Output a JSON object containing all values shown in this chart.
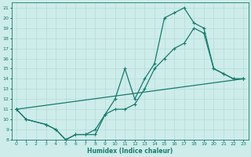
{
  "xlabel": "Humidex (Indice chaleur)",
  "xlim": [
    -0.5,
    23.5
  ],
  "ylim": [
    8,
    21.5
  ],
  "xticks": [
    0,
    1,
    2,
    3,
    4,
    5,
    6,
    7,
    8,
    9,
    10,
    11,
    12,
    13,
    14,
    15,
    16,
    17,
    18,
    19,
    20,
    21,
    22,
    23
  ],
  "yticks": [
    8,
    9,
    10,
    11,
    12,
    13,
    14,
    15,
    16,
    17,
    18,
    19,
    20,
    21
  ],
  "bg_color": "#cdecea",
  "grid_color": "#b0d8d5",
  "line_color": "#1a7a6e",
  "line1_x": [
    0,
    1,
    3,
    4,
    5,
    6,
    7,
    8,
    9,
    10,
    11,
    12,
    13,
    14,
    15,
    16,
    17,
    18,
    19,
    20,
    21,
    22,
    23
  ],
  "line1_y": [
    11,
    10,
    9.5,
    9,
    8,
    8.5,
    8.5,
    8.5,
    10.5,
    12,
    15,
    12,
    14,
    15.5,
    20,
    20.5,
    21,
    19.5,
    19,
    15,
    14.5,
    14,
    14
  ],
  "line2_x": [
    0,
    1,
    3,
    4,
    5,
    6,
    7,
    8,
    9,
    10,
    11,
    12,
    13,
    14,
    15,
    16,
    17,
    18,
    19,
    20,
    21,
    22,
    23
  ],
  "line2_y": [
    11,
    10,
    9.5,
    9,
    8,
    8.5,
    8.5,
    9,
    10.5,
    11,
    11,
    11.5,
    13,
    15,
    16,
    17,
    17.5,
    19,
    18.5,
    15,
    14.5,
    14,
    14
  ],
  "line3_x": [
    0,
    23
  ],
  "line3_y": [
    11,
    14
  ],
  "marker": "+",
  "marker_size": 3,
  "linewidth": 0.9
}
